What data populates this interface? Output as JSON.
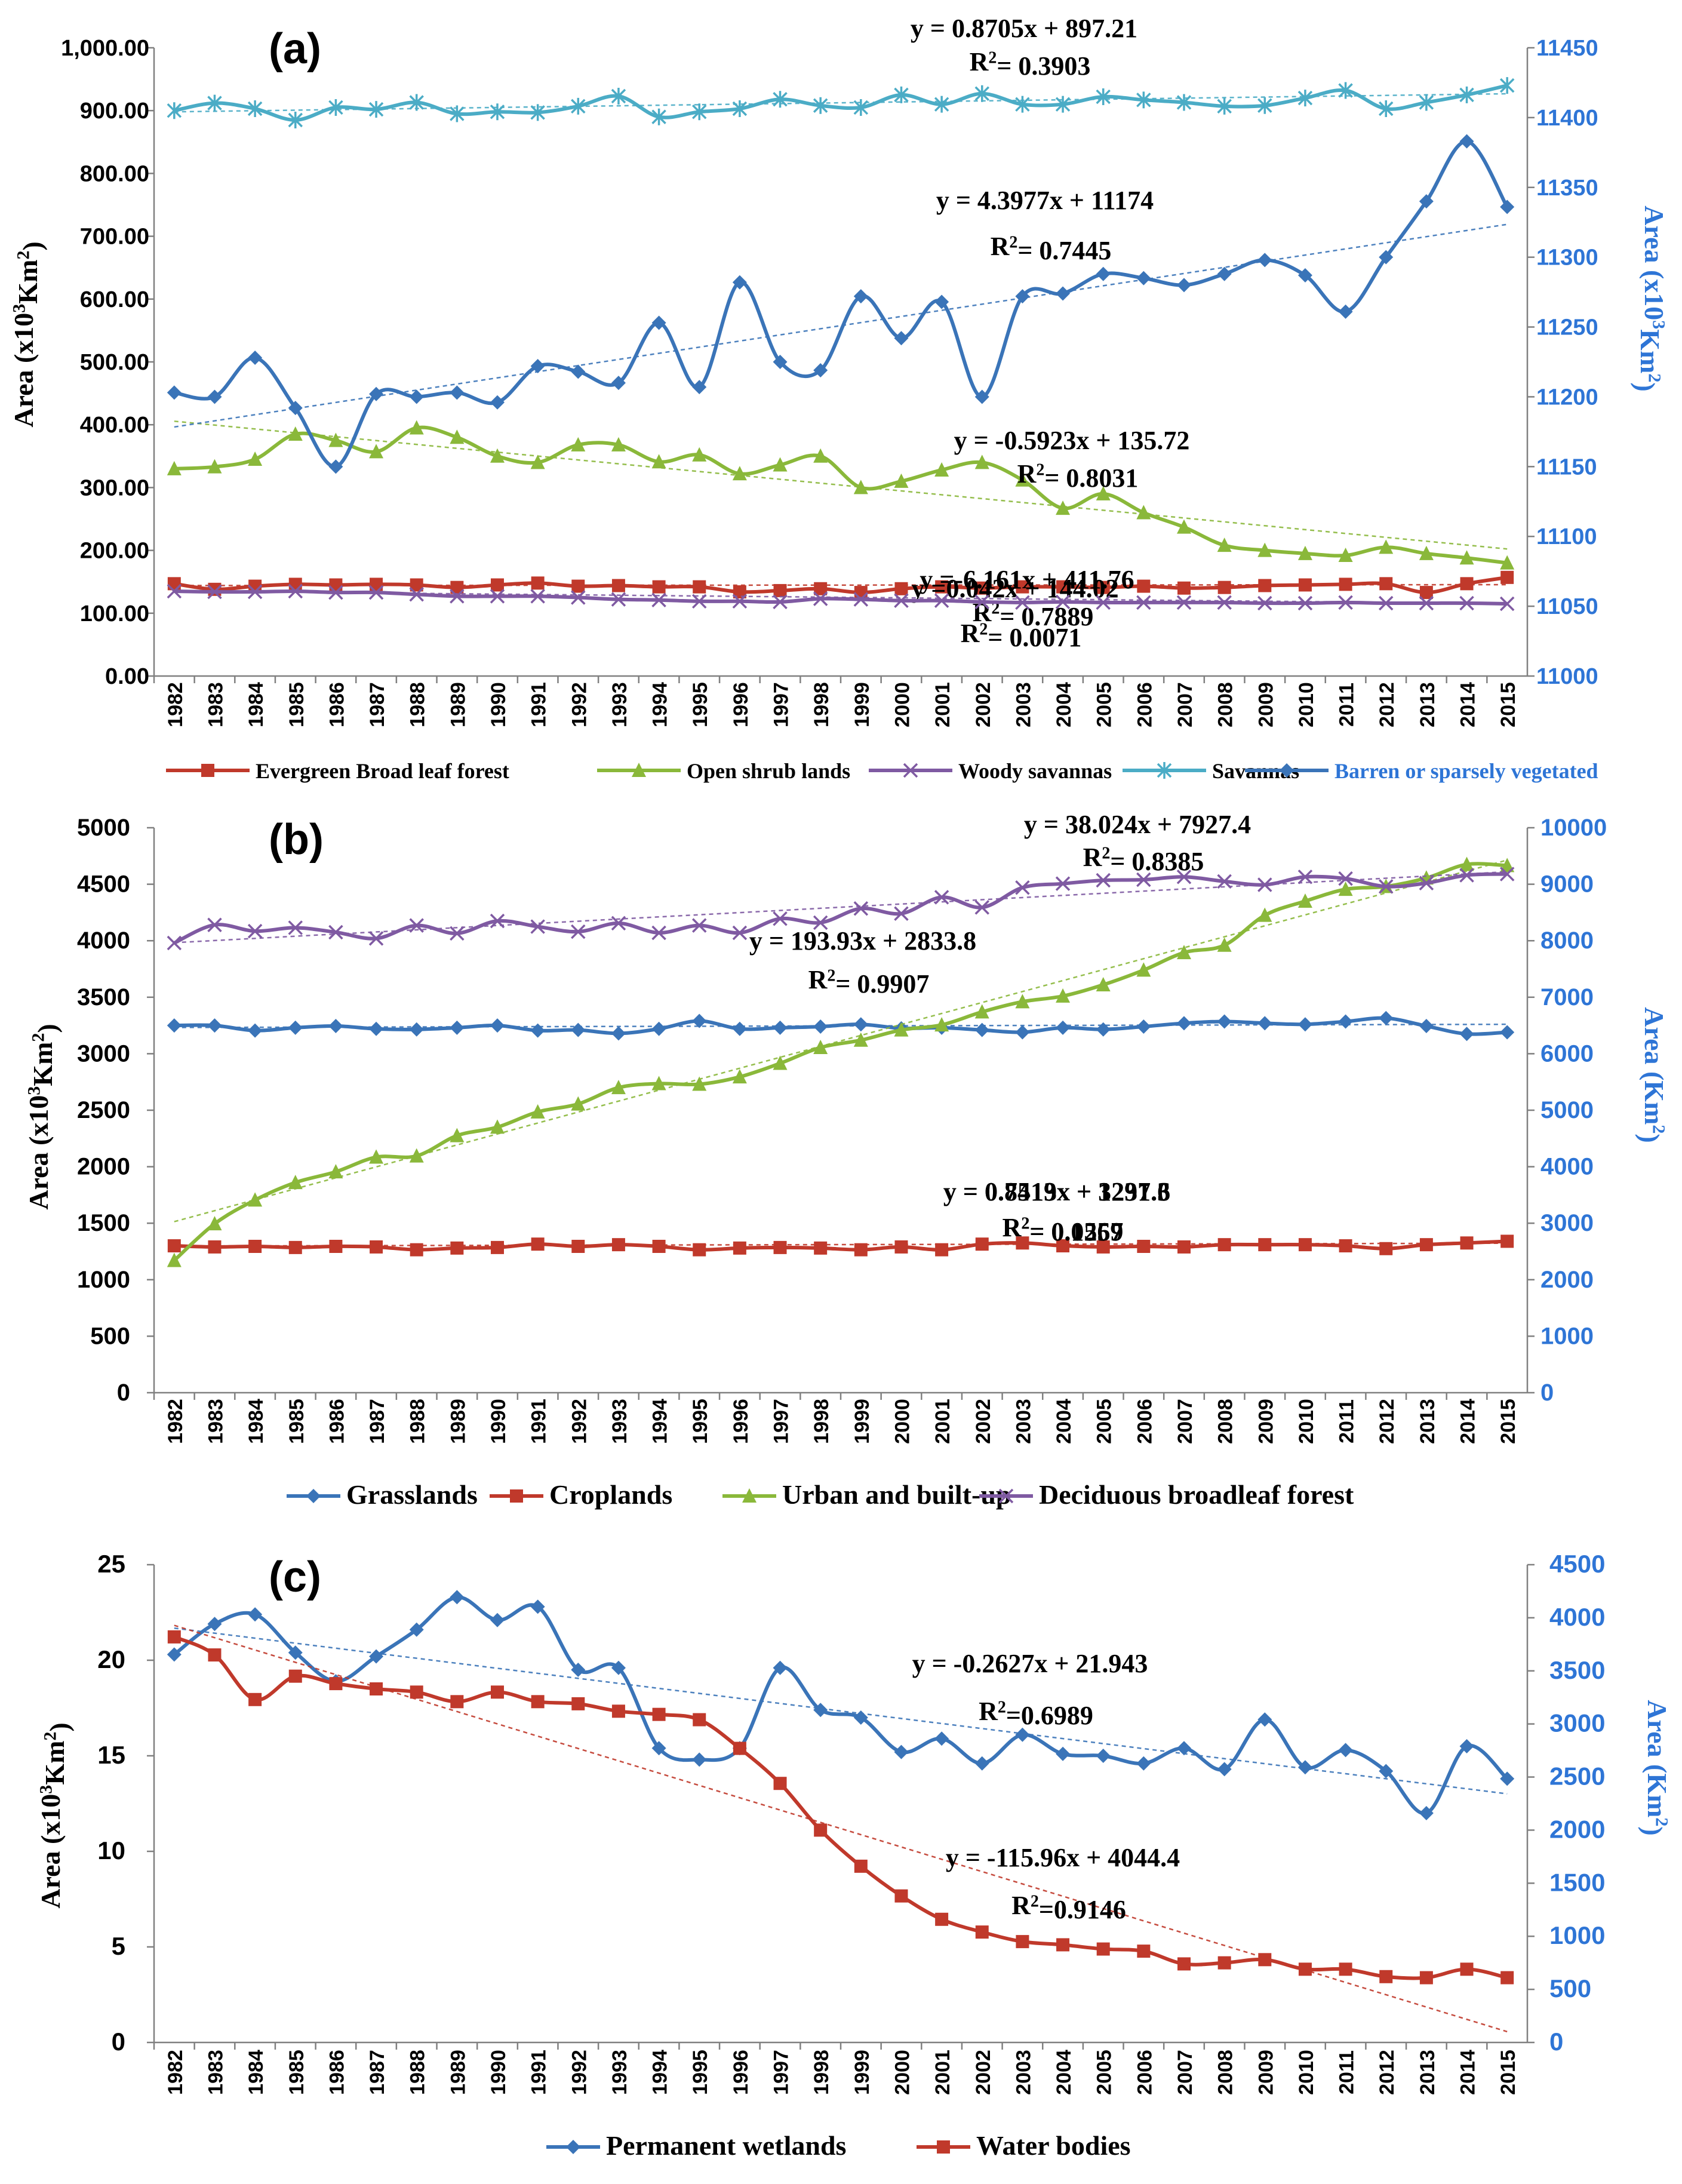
{
  "years": [
    "1982",
    "1983",
    "1984",
    "1985",
    "1986",
    "1987",
    "1988",
    "1989",
    "1990",
    "1991",
    "1992",
    "1993",
    "1994",
    "1995",
    "1996",
    "1997",
    "1998",
    "1999",
    "2000",
    "2001",
    "2002",
    "2003",
    "2004",
    "2005",
    "2006",
    "2007",
    "2008",
    "2009",
    "2010",
    "2011",
    "2012",
    "2013",
    "2014",
    "2015"
  ],
  "chart_data": [
    {
      "type": "line",
      "panel_label": "(a)",
      "ylabel": "Area (x10³Km²)",
      "ylabel_right": "Area (x10³Km²)",
      "ylim": [
        0,
        1000
      ],
      "yticks": [
        "0.00",
        "100.00",
        "200.00",
        "300.00",
        "400.00",
        "500.00",
        "600.00",
        "700.00",
        "800.00",
        "900.00",
        "1,000.00"
      ],
      "ylim_right": [
        11000,
        11450
      ],
      "yticks_right": [
        "11000",
        "11050",
        "11100",
        "11150",
        "11200",
        "11250",
        "11300",
        "11350",
        "11400",
        "11450"
      ],
      "series": [
        {
          "name": "Evergreen Broad leaf forest",
          "color": "#c0392b",
          "marker": "square",
          "axis": "left",
          "values": [
            147,
            138,
            143,
            146,
            145,
            146,
            145,
            141,
            145,
            148,
            143,
            144,
            142,
            142,
            134,
            136,
            139,
            133,
            139,
            142,
            140,
            142,
            142,
            141,
            143,
            140,
            141,
            144,
            145,
            146,
            147,
            133,
            147,
            157
          ],
          "trend": {
            "slope": 0.042,
            "intercept": 144.02,
            "equation": "y =0.042x + 144.02",
            "r2": "R²= 0.0071"
          }
        },
        {
          "name": "Open shrub lands",
          "color": "#8ab83a",
          "marker": "triangle",
          "axis": "left",
          "values": [
            330,
            333,
            345,
            385,
            375,
            357,
            395,
            380,
            350,
            340,
            368,
            368,
            341,
            352,
            322,
            336,
            350,
            300,
            310,
            328,
            340,
            312,
            267,
            290,
            260,
            237,
            208,
            200,
            195,
            192,
            205,
            195,
            188,
            180
          ],
          "trend": {
            "slope": -6.161,
            "intercept": 411.76,
            "equation": "y =-6.161x + 411.76",
            "r2": "R²= 0.7889"
          }
        },
        {
          "name": "Woody savannas",
          "color": "#7f5aa2",
          "marker": "x",
          "axis": "left",
          "values": [
            135,
            134,
            134,
            135,
            133,
            133,
            130,
            127,
            127,
            127,
            125,
            122,
            121,
            119,
            119,
            118,
            123,
            122,
            120,
            120,
            118,
            117,
            118,
            117,
            117,
            117,
            117,
            116,
            116,
            117,
            116,
            116,
            116,
            115
          ],
          "trend": {
            "slope": -0.5923,
            "intercept": 135.72,
            "equation": "y = -0.5923x + 135.72",
            "r2": "R²= 0.8031"
          }
        },
        {
          "name": "Savannas",
          "color": "#4bacc6",
          "marker": "star",
          "axis": "left",
          "values": [
            900,
            912,
            903,
            885,
            905,
            902,
            913,
            895,
            898,
            897,
            907,
            923,
            890,
            898,
            903,
            918,
            908,
            905,
            925,
            910,
            927,
            910,
            910,
            922,
            917,
            913,
            907,
            908,
            920,
            932,
            903,
            913,
            925,
            940
          ],
          "trend": {
            "slope": 0.8705,
            "intercept": 897.21,
            "equation": "y = 0.8705x + 897.21",
            "r2": "R²= 0.3903"
          }
        },
        {
          "name": "Barren or sparsely vegetated",
          "color": "#3a74b8",
          "marker": "diamond",
          "axis": "right",
          "values": [
            11203,
            11200,
            11228,
            11192,
            11150,
            11202,
            11200,
            11203,
            11196,
            11222,
            11218,
            11210,
            11253,
            11207,
            11282,
            11225,
            11219,
            11272,
            11242,
            11268,
            11200,
            11272,
            11274,
            11288,
            11285,
            11280,
            11288,
            11298,
            11287,
            11261,
            11300,
            11340,
            11383,
            11336
          ],
          "trend": {
            "slope": 4.3977,
            "intercept": 11174,
            "equation": "y = 4.3977x + 11174",
            "r2": "R²= 0.7445"
          }
        }
      ]
    },
    {
      "type": "line",
      "panel_label": "(b)",
      "ylabel": "Area (x10³Km²)",
      "ylabel_right": "Area (Km²)",
      "ylim": [
        0,
        5000
      ],
      "yticks": [
        "0",
        "500",
        "1000",
        "1500",
        "2000",
        "2500",
        "3000",
        "3500",
        "4000",
        "4500",
        "5000"
      ],
      "ylim_right": [
        0,
        10000
      ],
      "yticks_right": [
        "0",
        "1000",
        "2000",
        "3000",
        "4000",
        "5000",
        "6000",
        "7000",
        "8000",
        "9000",
        "10000"
      ],
      "series": [
        {
          "name": "Grasslands",
          "color": "#3a74b8",
          "marker": "diamond",
          "axis": "left",
          "values": [
            3250,
            3250,
            3205,
            3230,
            3245,
            3220,
            3215,
            3230,
            3250,
            3205,
            3210,
            3180,
            3220,
            3290,
            3220,
            3230,
            3240,
            3260,
            3225,
            3230,
            3210,
            3190,
            3230,
            3215,
            3240,
            3270,
            3285,
            3270,
            3260,
            3285,
            3315,
            3245,
            3175,
            3190
          ],
          "trend": {
            "slope": 0.8513,
            "intercept": 3231.3,
            "equation": "y = 0.8513x + 3231.3",
            "r2": "R²= 0.0567"
          }
        },
        {
          "name": "Croplands",
          "color": "#c0392b",
          "marker": "square",
          "axis": "left",
          "values": [
            1300,
            1290,
            1295,
            1285,
            1295,
            1290,
            1265,
            1280,
            1285,
            1315,
            1295,
            1310,
            1295,
            1265,
            1280,
            1285,
            1280,
            1265,
            1290,
            1265,
            1315,
            1325,
            1300,
            1290,
            1295,
            1290,
            1310,
            1310,
            1310,
            1300,
            1275,
            1310,
            1325,
            1340
          ],
          "trend": {
            "slope": 0.7419,
            "intercept": 1297.6,
            "equation": "y = 0.7419x + 1297.6",
            "r2": "R²= 0.1259"
          }
        },
        {
          "name": "Urban and built-up",
          "color": "#8ab83a",
          "marker": "triangle",
          "axis": "right",
          "values": [
            2340,
            2990,
            3410,
            3720,
            3910,
            4170,
            4190,
            4550,
            4700,
            4970,
            5110,
            5400,
            5470,
            5460,
            5590,
            5830,
            6110,
            6240,
            6420,
            6510,
            6740,
            6920,
            7020,
            7220,
            7480,
            7790,
            7920,
            8450,
            8700,
            8910,
            8960,
            9110,
            9350,
            9330
          ],
          "trend": {
            "slope": 193.93,
            "intercept": 2833.8,
            "equation": "y = 193.93x + 2833.8",
            "r2": "R²= 0.9907"
          }
        },
        {
          "name": "Deciduous broadleaf forest",
          "color": "#7f5aa2",
          "marker": "x",
          "axis": "right",
          "values": [
            7960,
            8280,
            8170,
            8230,
            8150,
            8040,
            8270,
            8130,
            8350,
            8250,
            8160,
            8310,
            8140,
            8270,
            8140,
            8390,
            8320,
            8570,
            8480,
            8770,
            8590,
            8940,
            9010,
            9070,
            9080,
            9130,
            9050,
            8990,
            9130,
            9100,
            8960,
            9020,
            9160,
            9180
          ],
          "trend": {
            "slope": 38.024,
            "intercept": 7927.4,
            "equation": "y = 38.024x + 7927.4",
            "r2": "R²= 0.8385"
          }
        }
      ]
    },
    {
      "type": "line",
      "panel_label": "(c)",
      "ylabel": "Area (x10³Km²)",
      "ylabel_right": "Area (Km²)",
      "ylim": [
        0,
        25
      ],
      "yticks": [
        "0",
        "5",
        "10",
        "15",
        "20",
        "25"
      ],
      "ylim_right": [
        0,
        4500
      ],
      "yticks_right": [
        "0",
        "500",
        "1000",
        "1500",
        "2000",
        "2500",
        "3000",
        "3500",
        "4000",
        "4500"
      ],
      "series": [
        {
          "name": "Permanent wetlands",
          "color": "#3a74b8",
          "marker": "diamond",
          "axis": "left",
          "values": [
            20.3,
            21.9,
            22.4,
            20.4,
            18.9,
            20.2,
            21.6,
            23.3,
            22.1,
            22.8,
            19.5,
            19.6,
            15.4,
            14.8,
            15.4,
            19.6,
            17.4,
            17.0,
            15.2,
            15.9,
            14.6,
            16.1,
            15.1,
            15.0,
            14.6,
            15.4,
            14.3,
            16.9,
            14.4,
            15.3,
            14.2,
            12.0,
            15.5,
            13.8
          ],
          "trend": {
            "slope": -0.2627,
            "intercept": 21.943,
            "equation": "y = -0.2627x + 21.943",
            "r2": "R²=0.6989"
          }
        },
        {
          "name": "Water bodies",
          "color": "#c0392b",
          "marker": "square",
          "axis": "right",
          "values": [
            3820,
            3650,
            3230,
            3450,
            3380,
            3330,
            3300,
            3210,
            3300,
            3210,
            3190,
            3120,
            3090,
            3040,
            2770,
            2440,
            2000,
            1660,
            1380,
            1160,
            1040,
            950,
            920,
            880,
            860,
            740,
            750,
            780,
            690,
            690,
            620,
            610,
            690,
            610
          ],
          "trend": {
            "slope": -115.96,
            "intercept": 4044.4,
            "equation": "y = -115.96x + 4044.4",
            "r2": "R²=0.9146"
          }
        }
      ]
    }
  ]
}
